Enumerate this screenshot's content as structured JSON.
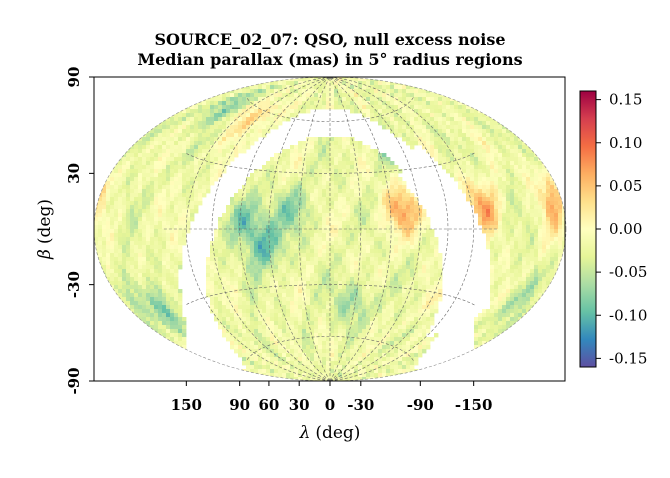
{
  "chart_data": {
    "type": "heatmap",
    "projection": "Aitoff / Hammer all-sky (ecliptic)",
    "title_line1": "SOURCE_02_07: QSO, null excess noise",
    "title_line2": "Median parallax (mas) in 5° radius regions",
    "xlabel_symbol": "λ",
    "xlabel_unit": "(deg)",
    "ylabel_symbol": "β",
    "ylabel_unit": "(deg)",
    "x_ticks": [
      {
        "value": 150,
        "label": "150"
      },
      {
        "value": 90,
        "label": "90"
      },
      {
        "value": 60,
        "label": "60"
      },
      {
        "value": 30,
        "label": "30"
      },
      {
        "value": 0,
        "label": "0"
      },
      {
        "value": -30,
        "label": "-30"
      },
      {
        "value": -90,
        "label": "-90"
      },
      {
        "value": -150,
        "label": "-150"
      }
    ],
    "y_ticks": [
      {
        "value": 90,
        "label": "90"
      },
      {
        "value": 30,
        "label": "30"
      },
      {
        "value": -30,
        "label": "-30"
      },
      {
        "value": -90,
        "label": "-90"
      }
    ],
    "xlim": [
      180,
      -180
    ],
    "ylim": [
      -90,
      90
    ],
    "colorbar": {
      "range": [
        -0.16,
        0.16
      ],
      "ticks": [
        0.15,
        0.1,
        0.05,
        0.0,
        -0.05,
        -0.1,
        -0.15
      ],
      "tick_labels": [
        "0.15",
        "0.10",
        "0.05",
        "0.00",
        "-0.05",
        "-0.10",
        "-0.15"
      ],
      "colormap": "Spectral_r",
      "colors": [
        "#5e4fa2",
        "#3288bd",
        "#66c2a5",
        "#abdda4",
        "#e6f598",
        "#ffffbf",
        "#fee08b",
        "#fdae61",
        "#f46d43",
        "#d53e4f",
        "#9e0142"
      ]
    },
    "empty_region": "Galactic plane band (no sources)",
    "typical_value": -0.02,
    "notable_patches": [
      {
        "lon": 135,
        "lat": 60,
        "value": -0.08
      },
      {
        "lon": 150,
        "lat": -35,
        "value": -0.09
      },
      {
        "lon": 60,
        "lat": 5,
        "value": -0.1
      },
      {
        "lon": 45,
        "lat": -10,
        "value": -0.09
      },
      {
        "lon": 25,
        "lat": 10,
        "value": -0.07
      },
      {
        "lon": -20,
        "lat": -40,
        "value": -0.07
      },
      {
        "lon": -50,
        "lat": 10,
        "value": 0.06
      },
      {
        "lon": -110,
        "lat": 10,
        "value": 0.06
      },
      {
        "lon": -105,
        "lat": -28,
        "value": 0.05
      },
      {
        "lon": -170,
        "lat": 10,
        "value": 0.04
      },
      {
        "lon": 100,
        "lat": 60,
        "value": 0.04
      },
      {
        "lon": -50,
        "lat": 45,
        "value": -0.06
      },
      {
        "lon": -160,
        "lat": -30,
        "value": -0.05
      }
    ]
  }
}
